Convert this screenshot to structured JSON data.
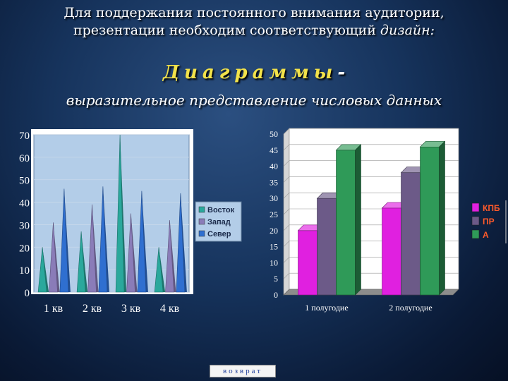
{
  "slide": {
    "title_line1": "Для поддержания постоянного внимания аудитории,",
    "title_line2_prefix": "презентации необходим соответствующий ",
    "title_line2_em": "дизайн:",
    "heading": "Диаграммы",
    "heading_dash": "-",
    "subheading": "выразительное представление числовых данных",
    "back_label": "возврат"
  },
  "chart_data": [
    {
      "type": "area",
      "categories": [
        "1 кв",
        "2 кв",
        "3 кв",
        "4 кв"
      ],
      "series": [
        {
          "name": "Восток",
          "values": [
            20,
            27,
            70,
            20
          ],
          "color": "#2aa89c"
        },
        {
          "name": "Запад",
          "values": [
            31,
            39,
            35,
            32
          ],
          "color": "#8a7cb8"
        },
        {
          "name": "Север",
          "values": [
            46,
            47,
            45,
            44
          ],
          "color": "#2f6fd0"
        }
      ],
      "ylim": [
        0,
        70
      ],
      "yticks": [
        0,
        10,
        20,
        30,
        40,
        50,
        60,
        70
      ],
      "plot_background": "#b3cde8",
      "legend": "right"
    },
    {
      "type": "bar",
      "categories": [
        "1 полугодие",
        "2 полугодие"
      ],
      "series": [
        {
          "name": "КПБ",
          "values": [
            20,
            27
          ],
          "color": "#e020e0"
        },
        {
          "name": "ПР",
          "values": [
            30,
            38
          ],
          "color": "#6c5a88"
        },
        {
          "name": "А",
          "values": [
            45,
            46
          ],
          "color": "#2f9a58"
        }
      ],
      "ylim": [
        0,
        50
      ],
      "yticks": [
        0,
        5,
        10,
        15,
        20,
        25,
        30,
        35,
        40,
        45,
        50
      ],
      "legend": "right"
    }
  ]
}
